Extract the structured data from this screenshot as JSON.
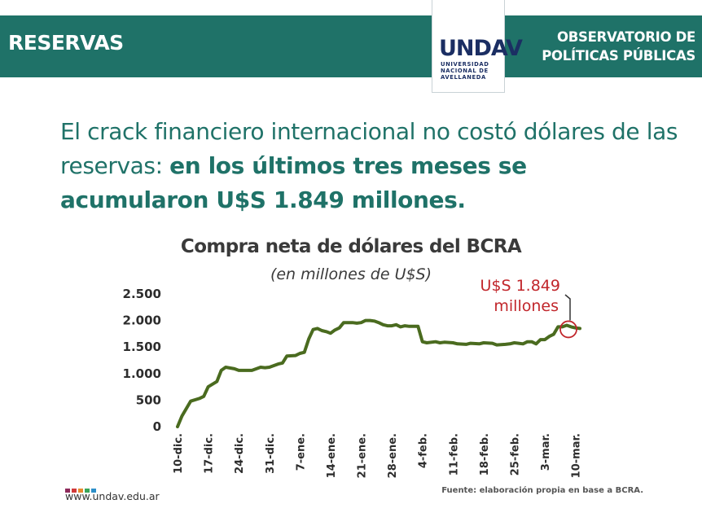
{
  "header": {
    "section": "RESERVAS",
    "org_line1": "OBSERVATORIO DE",
    "org_line2": "POLÍTICAS PÚBLICAS",
    "logo_text": "UNDAV",
    "logo_sub1": "UNIVERSIDAD",
    "logo_sub2": "NACIONAL DE",
    "logo_sub3": "AVELLANEDA"
  },
  "headline": {
    "plain": "El crack financiero internacional no costó dólares de las reservas: ",
    "bold": "en los últimos tres meses se acumularon U$S 1.849 millones."
  },
  "footer": {
    "site": "www.undav.edu.ar",
    "source": "Fuente: elaboración propia en base a BCRA.",
    "dot_colors": [
      "#8e2a5b",
      "#d13a3a",
      "#e68a2e",
      "#3aa55a",
      "#2d8fc9"
    ]
  },
  "chart_data": {
    "type": "line",
    "title": "Compra neta de dólares del BCRA",
    "subtitle": "(en millones de U$S)",
    "annotation": {
      "line1": "U$S 1.849",
      "line2": "millones",
      "value": 1849
    },
    "color": "#4a6b1f",
    "annotation_color": "#c1262b",
    "ylim": [
      0,
      2500
    ],
    "yticks": [
      0,
      500,
      1000,
      1500,
      2000,
      2500
    ],
    "ytick_labels": [
      "0",
      "500",
      "1.000",
      "1.500",
      "2.000",
      "2.500"
    ],
    "xlim": [
      0,
      92
    ],
    "xticks": [
      0,
      7,
      14,
      21,
      28,
      35,
      42,
      49,
      56,
      63,
      70,
      77,
      84,
      91
    ],
    "xtick_labels": [
      "10-dic.",
      "17-dic.",
      "24-dic.",
      "31-dic.",
      "7-ene.",
      "14-ene.",
      "21-ene.",
      "28-ene.",
      "4-feb.",
      "11-feb.",
      "18-feb.",
      "25-feb.",
      "3-mar.",
      "10-mar."
    ],
    "series": [
      {
        "x": [
          0,
          1,
          3,
          5,
          6,
          7,
          9,
          10,
          11,
          13,
          14,
          15,
          16,
          17,
          19,
          20,
          21,
          23,
          24,
          25,
          27,
          28,
          29,
          30,
          31,
          32,
          33,
          34,
          35,
          36,
          37,
          38,
          39,
          40,
          41,
          42,
          43,
          44,
          45,
          46,
          47,
          48,
          49,
          50,
          51,
          52,
          53,
          55,
          56,
          57,
          59,
          60,
          61,
          63,
          64,
          66,
          67,
          69,
          70,
          72,
          73,
          75,
          76,
          77,
          78,
          79,
          80,
          81,
          82,
          83,
          84,
          85,
          86,
          87,
          88,
          89,
          90,
          91,
          92
        ],
        "y": [
          0,
          200,
          480,
          530,
          570,
          750,
          850,
          1060,
          1120,
          1090,
          1060,
          1060,
          1060,
          1060,
          1120,
          1110,
          1120,
          1180,
          1200,
          1330,
          1340,
          1380,
          1400,
          1650,
          1830,
          1850,
          1810,
          1790,
          1760,
          1820,
          1860,
          1960,
          1960,
          1960,
          1950,
          1960,
          2000,
          2000,
          1990,
          1960,
          1920,
          1900,
          1900,
          1920,
          1880,
          1900,
          1890,
          1890,
          1600,
          1580,
          1600,
          1580,
          1590,
          1580,
          1560,
          1550,
          1570,
          1560,
          1580,
          1570,
          1540,
          1550,
          1560,
          1580,
          1570,
          1560,
          1600,
          1600,
          1560,
          1640,
          1640,
          1700,
          1740,
          1880,
          1880,
          1910,
          1880,
          1860,
          1849
        ]
      }
    ]
  }
}
